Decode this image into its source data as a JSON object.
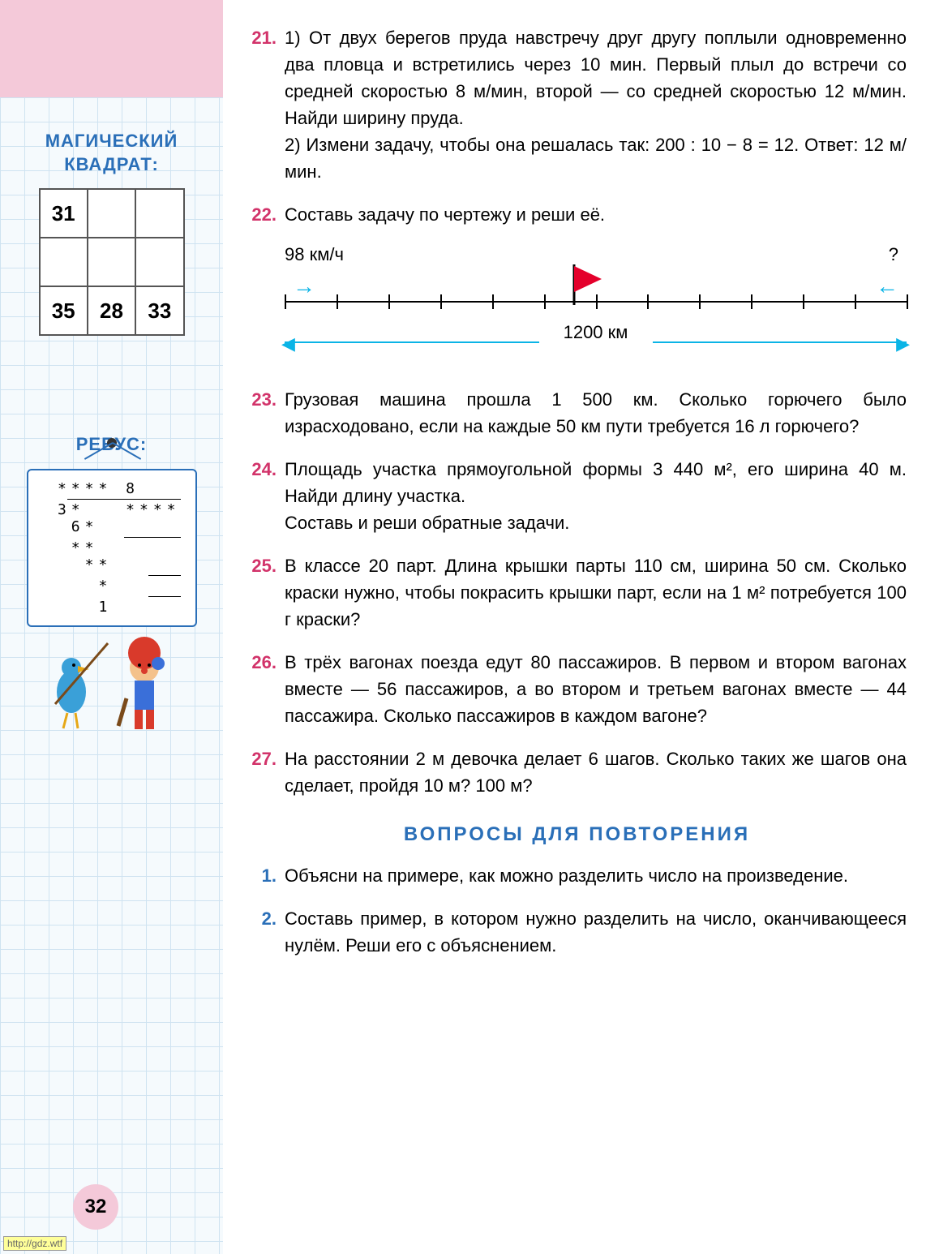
{
  "page_number": "32",
  "watermark": "http://gdz.wtf",
  "sidebar": {
    "magic_title": "МАГИЧЕСКИЙ КВАДРАТ:",
    "magic_square": [
      [
        "31",
        "",
        ""
      ],
      [
        "",
        "",
        ""
      ],
      [
        "35",
        "28",
        "33"
      ]
    ],
    "rebus_title": "РЕБУС:",
    "rebus_lines": [
      " **** 8   ",
      " 3*   ****",
      "  6*      ",
      "  **      ",
      "   **     ",
      "    *     ",
      "    1     "
    ]
  },
  "problems": [
    {
      "num": "21.",
      "text": "1) От двух берегов пруда навстречу друг другу поплыли одновременно два пловца и встретились через 10 мин. Первый плыл до встречи со средней скоростью 8 м/мин, второй — со средней скоростью 12 м/мин. Найди ширину пруда.\n2) Измени задачу, чтобы она решалась так: 200 : 10 − 8 = 12.  Ответ:  12 м/мин."
    },
    {
      "num": "22.",
      "text": "Составь задачу по чертежу и реши её."
    },
    {
      "num": "23.",
      "text": "Грузовая машина прошла 1 500 км. Сколько горючего было израсходовано, если на каждые 50 км пути требуется 16 л горючего?"
    },
    {
      "num": "24.",
      "text": "Площадь участка прямоугольной формы 3 440 м², его ширина 40 м. Найди длину участка.\nСоставь и реши обратные задачи."
    },
    {
      "num": "25.",
      "text": "В классе 20 парт. Длина крышки парты 110 см, ширина 50 см. Сколько краски нужно, чтобы покрасить крышки парт, если на 1 м² потребуется 100 г краски?"
    },
    {
      "num": "26.",
      "text": "В трёх вагонах поезда едут 80 пассажиров. В первом и втором вагонах вместе — 56 пассажиров, а во втором и третьем вагонах вместе — 44 пассажира. Сколько пассажиров в каждом вагоне?"
    },
    {
      "num": "27.",
      "text": "На расстоянии 2 м девочка делает 6 шагов. Сколько таких же шагов она сделает, пройдя 10 м? 100 м?"
    }
  ],
  "diagram": {
    "speed_left": "98 км/ч",
    "speed_right": "?",
    "distance": "1200 км",
    "ticks": 13,
    "flag_position_pct": 46,
    "line_color": "#000000",
    "arrow_color": "#0bb4e6",
    "flag_color": "#e4002b"
  },
  "review": {
    "title": "ВОПРОСЫ ДЛЯ ПОВТОРЕНИЯ",
    "items": [
      {
        "num": "1.",
        "text": "Объясни на примере, как можно разделить число на произведение."
      },
      {
        "num": "2.",
        "text": "Составь пример, в котором нужно разделить на число, оканчивающееся нулём. Реши его с объяснением."
      }
    ]
  },
  "colors": {
    "problem_num": "#d2336a",
    "heading": "#2a6fb8",
    "sidebar_pink": "#f4c9d9",
    "grid": "#cfe3f1"
  },
  "typography": {
    "body_fontsize": 22,
    "heading_fontsize": 24
  }
}
